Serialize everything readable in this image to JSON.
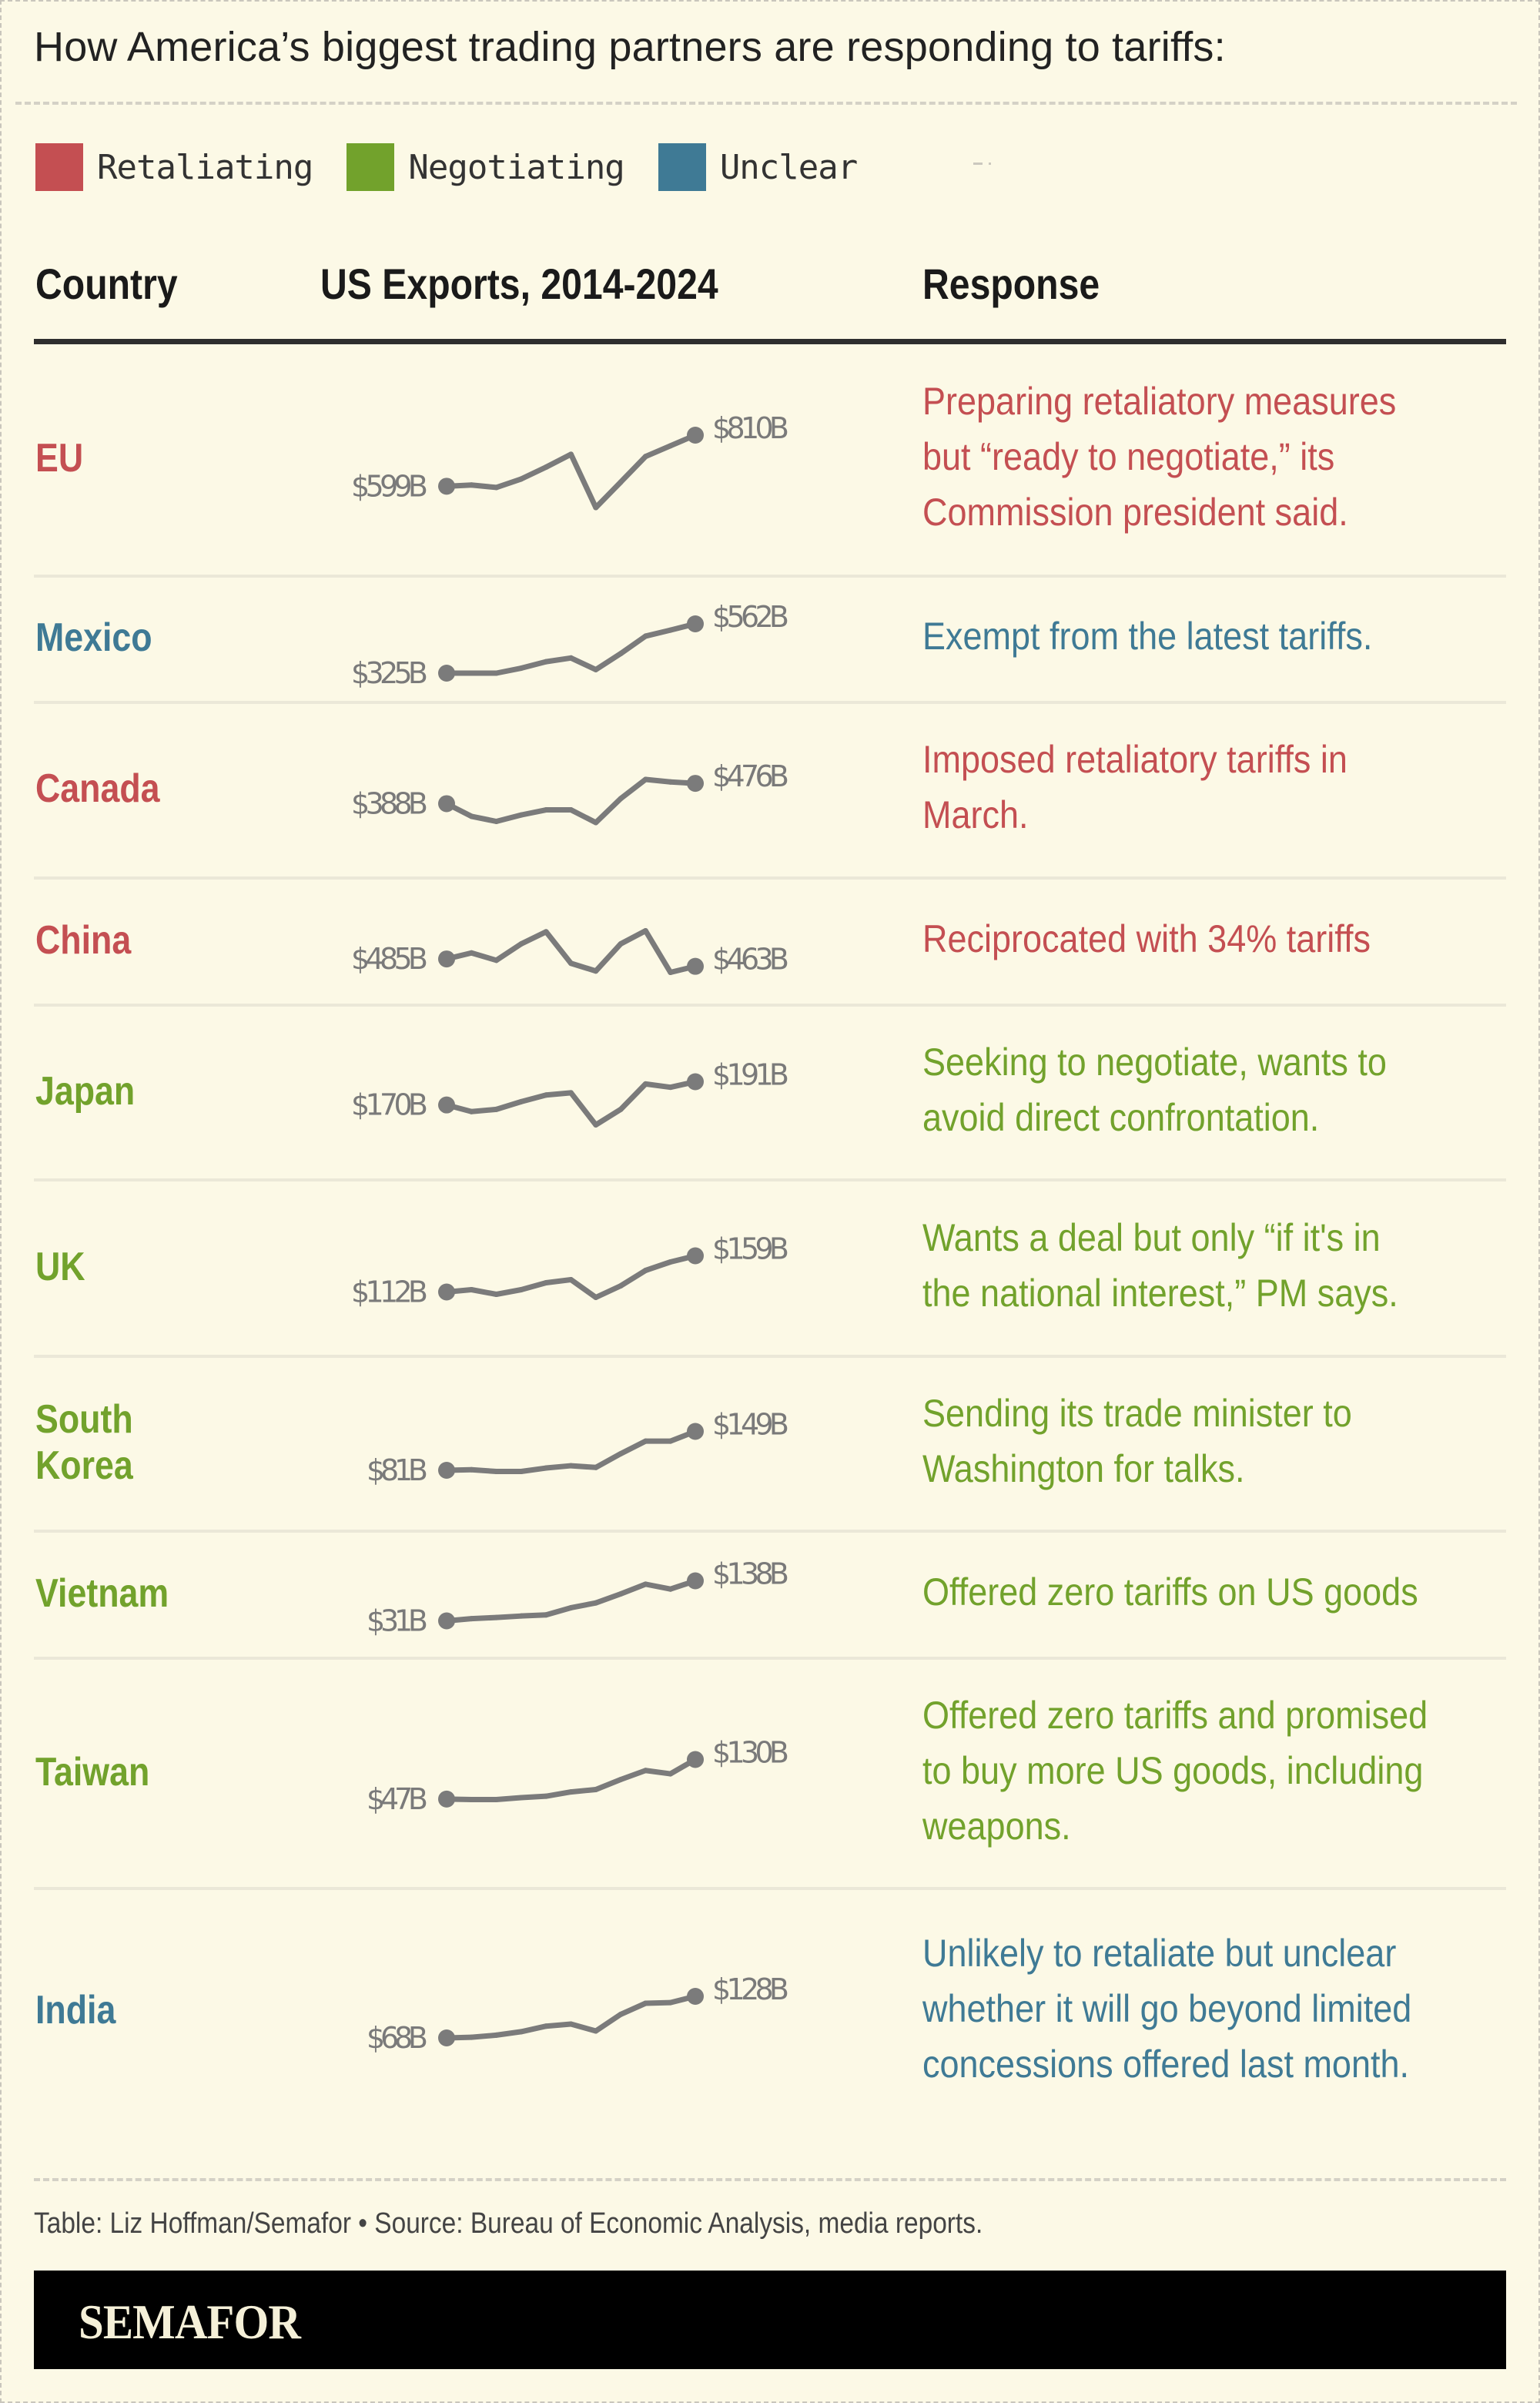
{
  "title": "How America’s biggest trading partners are responding to tariffs:",
  "legend": [
    {
      "label": "Retaliating",
      "color": "#c44f52",
      "key": "retaliating"
    },
    {
      "label": "Negotiating",
      "color": "#72a22c",
      "key": "negotiating"
    },
    {
      "label": "Unclear",
      "color": "#3f7a95",
      "key": "unclear"
    }
  ],
  "columns": {
    "country": "Country",
    "exports": "US Exports, 2014-2024",
    "response": "Response"
  },
  "footer": {
    "source": "Table: Liz Hoffman/Semafor • Source: Bureau of Economic Analysis, media reports.",
    "brand": "SEMAFOR"
  },
  "rows": [
    {
      "country": "EU",
      "status": "retaliating",
      "start_label": "$599B",
      "end_label": "$810B",
      "response": [
        "Preparing retaliatory measures",
        "but “ready to negotiate,” its",
        "Commission president said."
      ]
    },
    {
      "country": "Mexico",
      "status": "unclear",
      "start_label": "$325B",
      "end_label": "$562B",
      "response": [
        "Exempt from the latest tariffs."
      ]
    },
    {
      "country": "Canada",
      "status": "retaliating",
      "start_label": "$388B",
      "end_label": "$476B",
      "response": [
        "Imposed retaliatory tariffs in",
        "March."
      ]
    },
    {
      "country": "China",
      "status": "retaliating",
      "start_label": "$485B",
      "end_label": "$463B",
      "response": [
        "Reciprocated with 34% tariffs"
      ]
    },
    {
      "country": "Japan",
      "status": "negotiating",
      "start_label": "$170B",
      "end_label": "$191B",
      "response": [
        "Seeking to negotiate, wants to",
        "avoid direct confrontation."
      ]
    },
    {
      "country": "UK",
      "status": "negotiating",
      "start_label": "$112B",
      "end_label": "$159B",
      "response": [
        "Wants a deal but only “if it's in",
        "the national interest,” PM says."
      ]
    },
    {
      "country": "South Korea",
      "country_lines": [
        "South",
        "Korea"
      ],
      "status": "negotiating",
      "start_label": "$81B",
      "end_label": "$149B",
      "response": [
        "Sending its trade minister to",
        "Washington for talks."
      ]
    },
    {
      "country": "Vietnam",
      "status": "negotiating",
      "start_label": "$31B",
      "end_label": "$138B",
      "response": [
        "Offered zero tariffs on US goods"
      ]
    },
    {
      "country": "Taiwan",
      "status": "negotiating",
      "start_label": "$47B",
      "end_label": "$130B",
      "response": [
        "Offered zero tariffs and promised",
        "to buy more US goods, including",
        "weapons."
      ]
    },
    {
      "country": "India",
      "status": "unclear",
      "start_label": "$68B",
      "end_label": "$128B",
      "response": [
        "Unlikely to retaliate but unclear",
        "whether it will go beyond limited",
        "concessions offered last month."
      ]
    }
  ],
  "chart_data": {
    "type": "line",
    "title": "US Exports, 2014-2024",
    "xlabel": "",
    "ylabel": "US Exports ($B)",
    "x": [
      2014,
      2015,
      2016,
      2017,
      2018,
      2019,
      2020,
      2021,
      2022,
      2023,
      2024
    ],
    "grid": false,
    "series": [
      {
        "name": "EU",
        "values": [
          599,
          604,
          594,
          629,
          678,
          731,
          511,
          616,
          722,
          766,
          810
        ]
      },
      {
        "name": "Mexico",
        "values": [
          325,
          325,
          325,
          349,
          380,
          398,
          342,
          419,
          503,
          532,
          562
        ]
      },
      {
        "name": "Canada",
        "values": [
          388,
          333,
          311,
          339,
          361,
          361,
          306,
          410,
          493,
          482,
          476
        ]
      },
      {
        "name": "China",
        "values": [
          485,
          503,
          481,
          530,
          566,
          472,
          449,
          530,
          569,
          445,
          463
        ]
      },
      {
        "name": "Japan",
        "values": [
          170,
          164,
          166,
          173,
          179,
          181,
          152,
          166,
          189,
          186,
          191
        ]
      },
      {
        "name": "UK",
        "values": [
          112,
          115,
          109,
          115,
          124,
          128,
          105,
          120,
          140,
          151,
          159
        ]
      },
      {
        "name": "South Korea",
        "values": [
          81,
          82,
          79,
          79,
          85,
          89,
          86,
          110,
          132,
          132,
          149
        ]
      },
      {
        "name": "Vietnam",
        "values": [
          31,
          37,
          40,
          44,
          47,
          66,
          79,
          103,
          129,
          116,
          138
        ]
      },
      {
        "name": "Taiwan",
        "values": [
          47,
          46,
          46,
          50,
          53,
          62,
          67,
          88,
          107,
          100,
          130
        ]
      },
      {
        "name": "India",
        "values": [
          68,
          69,
          72,
          77,
          85,
          88,
          78,
          102,
          118,
          119,
          128
        ]
      }
    ]
  }
}
